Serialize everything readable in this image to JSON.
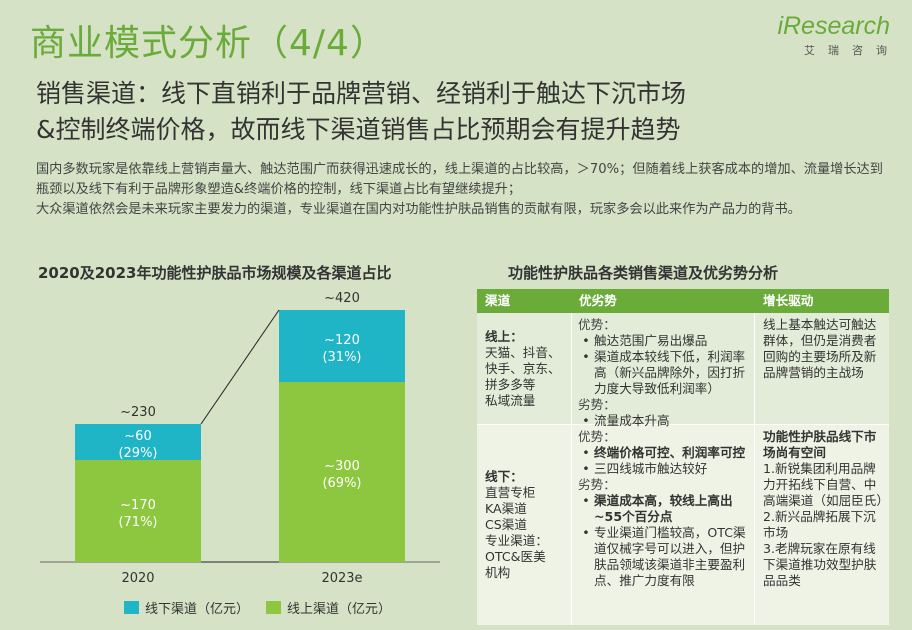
{
  "header": {
    "title": "商业模式分析（4/4）",
    "brand_logo": "iResearch",
    "brand_sub": "艾瑞咨询"
  },
  "headline": {
    "line1": "销售渠道：线下直销利于品牌营销、经销利于触达下沉市场",
    "line2": "&控制终端价格，故而线下渠道销售占比预期会有提升趋势"
  },
  "intro": {
    "p1": "国内多数玩家是依靠线上营销声量大、触达范围广而获得迅速成长的，线上渠道的占比较高，＞70%；但随着线上获客成本的增加、流量增长达到瓶颈以及线下有利于品牌形象塑造&终端价格的控制，线下渠道占比有望继续提升；",
    "p2": "大众渠道依然会是未来玩家主要发力的渠道，专业渠道在国内对功能性护肤品销售的贡献有限，玩家多会以此来作为产品力的背书。"
  },
  "chart_data": {
    "type": "bar",
    "stacked": true,
    "title": "2020及2023年功能性护肤品市场规模及各渠道占比",
    "categories": [
      "2020",
      "2023e"
    ],
    "totals": [
      "~230",
      "~420"
    ],
    "series": [
      {
        "name": "线上渠道（亿元）",
        "color": "#8dc63f",
        "values": [
          170,
          300
        ],
        "labels": [
          "~170",
          "~300"
        ],
        "shares": [
          "(71%)",
          "(69%)"
        ]
      },
      {
        "name": "线下渠道（亿元）",
        "color": "#1fb5c6",
        "values": [
          60,
          120
        ],
        "labels": [
          "~60",
          "~120"
        ],
        "shares": [
          "(29%)",
          "(31%)"
        ]
      }
    ]
  },
  "table": {
    "title": "功能性护肤品各类销售渠道及优劣势分析",
    "headers": [
      "渠道",
      "优劣势",
      "增长驱动"
    ],
    "online": {
      "name": "线上：",
      "detail": [
        "天猫、抖音、",
        "快手、京东、",
        "拼多多等",
        "私域流量"
      ],
      "adv_label": "优势：",
      "adv": [
        "触达范围广易出爆品",
        "渠道成本较线下低，利润率高（新兴品牌除外，因打折力度大导致低利润率）"
      ],
      "dis_label": "劣势：",
      "dis": [
        "流量成本升高"
      ],
      "driver": "线上基本触达可触达群体，但仍是消费者回购的主要场所及新品牌营销的主战场"
    },
    "offline": {
      "name": "线下：",
      "detail": [
        "直营专柜",
        "KA渠道",
        "CS渠道",
        "专业渠道：",
        "OTC&医美",
        "机构"
      ],
      "adv_label": "优势：",
      "adv_bold": "终端价格可控、利润率可控",
      "adv": "三四线城市触达较好",
      "dis_label": "劣势：",
      "dis_bold": "渠道成本高，较线上高出~55个百分点",
      "dis": "专业渠道门槛较高，OTC渠道仅械字号可以进入，但护肤品领域该渠道非主要盈利点、推广力度有限",
      "driver_title": "功能性护肤品线下市场尚有空间",
      "driver_items": [
        "1.新锐集团利用品牌力开拓线下自营、中高端渠道（如屈臣氏）",
        "2.新兴品牌拓展下沉市场",
        "3.老牌玩家在原有线下渠道推功效型护肤品品类"
      ]
    }
  }
}
